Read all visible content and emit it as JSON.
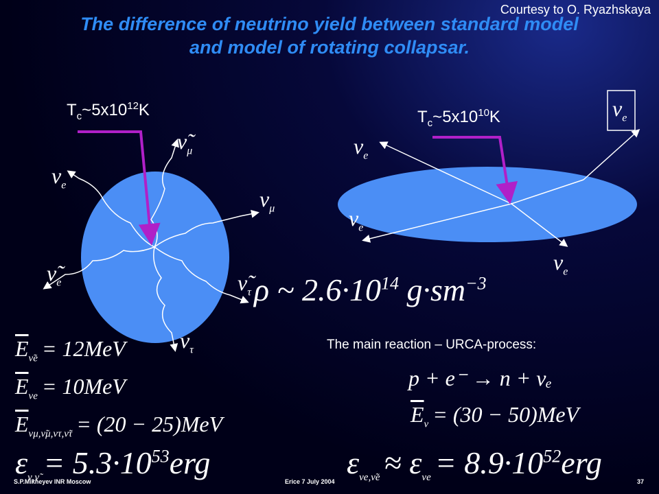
{
  "courtesy": "Courtesy to O. Ryazhskaya",
  "title": "The difference of neutrino yield between standard model and model of rotating collapsar.",
  "left_panel": {
    "temperature": {
      "symbol": "T",
      "subscript": "c",
      "value": "~5x10",
      "exponent": "12",
      "unit": "K"
    },
    "neutrino_labels": [
      {
        "symbol": "ν̃",
        "subscript": "μ"
      },
      {
        "symbol": "ν",
        "subscript": "e"
      },
      {
        "symbol": "ν",
        "subscript": "μ"
      },
      {
        "symbol": "ν̃",
        "subscript": "e"
      },
      {
        "symbol": "ν̃",
        "subscript": "τ"
      },
      {
        "symbol": "ν",
        "subscript": "τ"
      }
    ]
  },
  "right_panel": {
    "temperature": {
      "symbol": "T",
      "subscript": "c",
      "value": "~5x10",
      "exponent": "10",
      "unit": "K"
    },
    "neutrino_labels": [
      {
        "symbol": "ν",
        "subscript": "e"
      },
      {
        "symbol": "ν",
        "subscript": "e"
      },
      {
        "symbol": "ν",
        "subscript": "e"
      },
      {
        "symbol": "ν",
        "subscript": "e"
      }
    ]
  },
  "density": {
    "lhs": "ρ ~ 2.6·10",
    "exponent": "14",
    "rhs": "g·sm",
    "rhs_exponent": "−3"
  },
  "left_formulas": [
    {
      "lhs": "E",
      "lhs_sub": "ν̃e",
      "rhs": "= 12MeV"
    },
    {
      "lhs": "E",
      "lhs_sub": "νe",
      "rhs": "= 10MeV"
    },
    {
      "lhs": "E",
      "lhs_sub": "νμ,ν̃μ,ντ,ν̃τ",
      "rhs": "= (20 − 25)MeV"
    },
    {
      "lhs": "ε",
      "lhs_sub": "ν,ν̃",
      "rhs": "= 5.3·10",
      "rhs_sup": "53",
      "tail": "erg"
    }
  ],
  "reaction_title": "The main reaction – URCA-process:",
  "reaction": "p + e⁻ → n + νₑ",
  "right_formulas": [
    {
      "lhs": "E",
      "lhs_sub": "ν",
      "rhs": "= (30 − 50)MeV"
    },
    {
      "lhs": "ε",
      "lhs_sub": "νe,ν̃e",
      "rhs": "≈ ε",
      "rhs_sub": "νe",
      "rhs2": "= 8.9·10",
      "rhs_sup": "52",
      "tail": "erg"
    }
  ],
  "footer": {
    "author": "S.P.Mikheyev INR Moscow",
    "event": "Erice 7 July 2004",
    "page": "37"
  }
}
